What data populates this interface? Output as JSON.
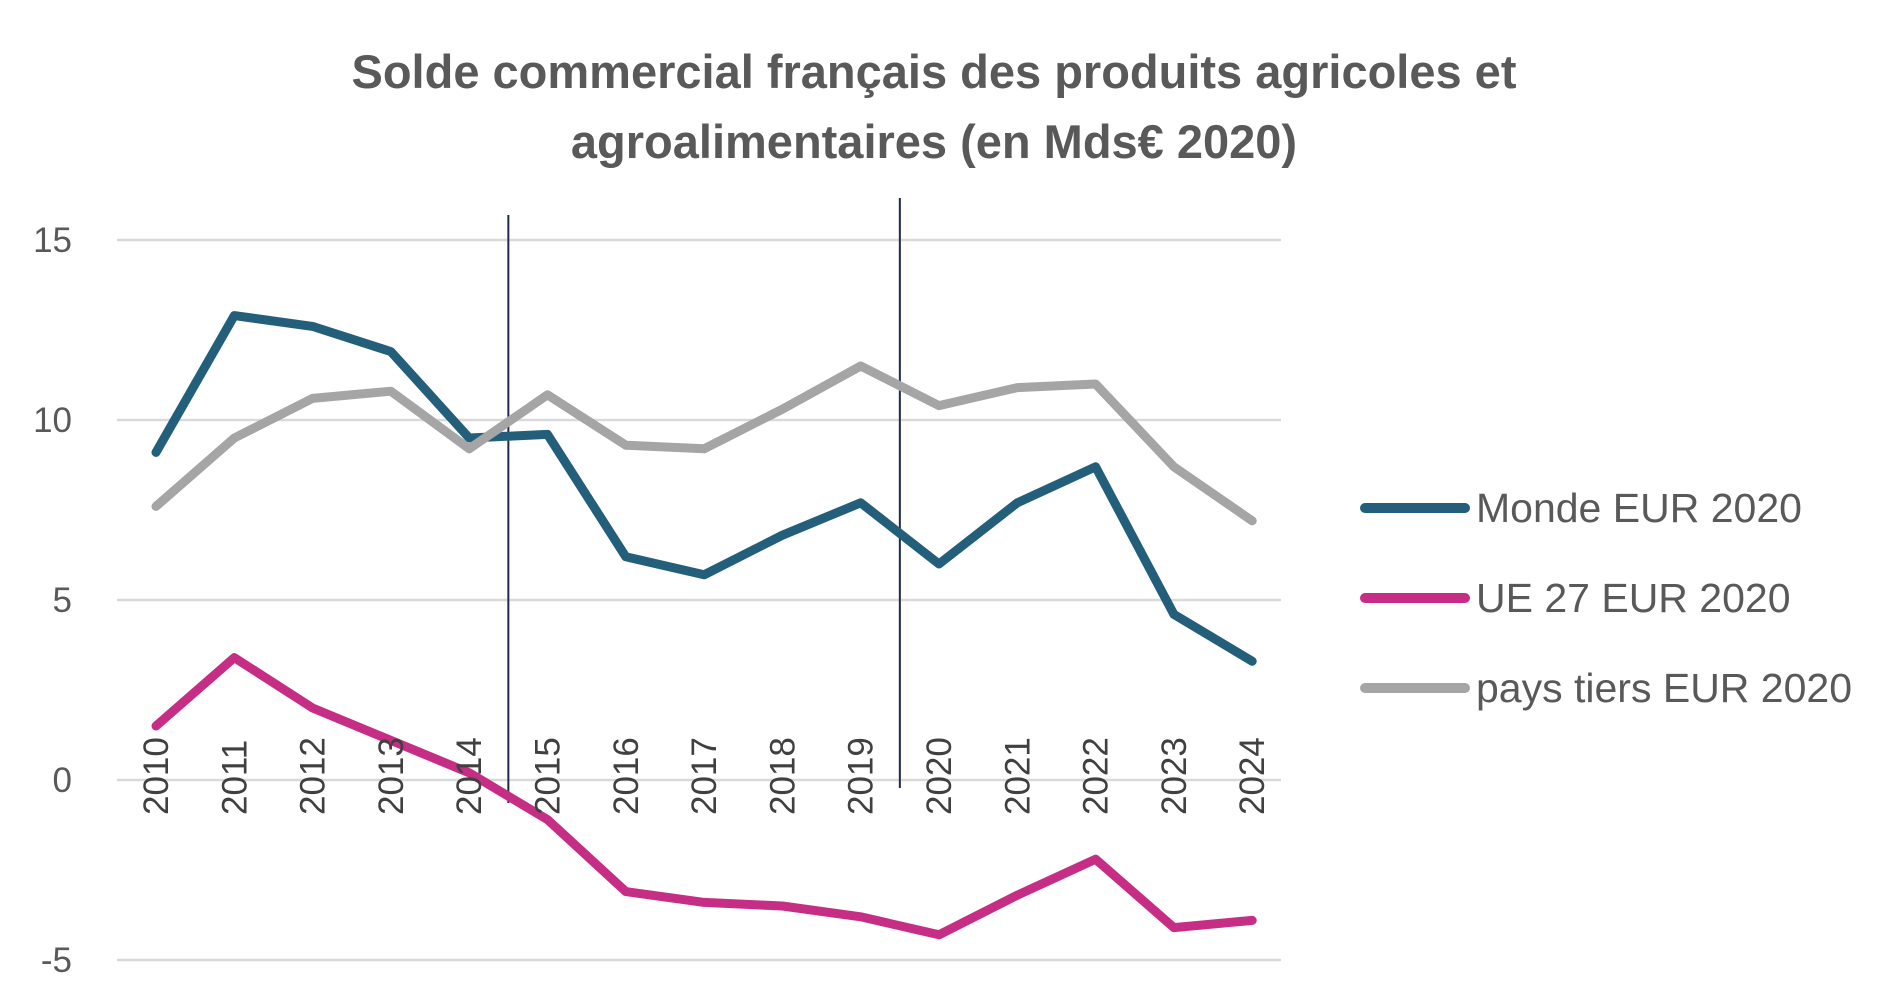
{
  "chart_data": {
    "type": "line",
    "title_lines": [
      "Solde commercial français des produits agricoles et",
      "agroalimentaires (en Mds€ 2020)"
    ],
    "categories": [
      "2010",
      "2011",
      "2012",
      "2013",
      "2014",
      "2015",
      "2016",
      "2017",
      "2018",
      "2019",
      "2020",
      "2021",
      "2022",
      "2023",
      "2024"
    ],
    "y_ticks": [
      "-5",
      "0",
      "5",
      "10",
      "15"
    ],
    "ylim": [
      -5,
      15
    ],
    "grid": "horizontal",
    "legend_position": "right",
    "vertical_markers_between": [
      [
        "2014",
        "2015"
      ],
      [
        "2019",
        "2020"
      ]
    ],
    "series": [
      {
        "name": "Monde EUR 2020",
        "color": "#235f7a",
        "values": [
          9.1,
          12.9,
          12.6,
          11.9,
          9.5,
          9.6,
          6.2,
          5.7,
          6.8,
          7.7,
          6.0,
          7.7,
          8.7,
          4.6,
          3.3
        ]
      },
      {
        "name": "UE 27 EUR 2020",
        "color": "#c62e86",
        "values": [
          1.5,
          3.4,
          2.0,
          1.1,
          0.2,
          -1.1,
          -3.1,
          -3.4,
          -3.5,
          -3.8,
          -4.3,
          -3.2,
          -2.2,
          -4.1,
          -3.9
        ]
      },
      {
        "name": "pays tiers EUR 2020",
        "color": "#a5a5a5",
        "values": [
          7.6,
          9.5,
          10.6,
          10.8,
          9.2,
          10.7,
          9.3,
          9.2,
          10.3,
          11.5,
          10.4,
          10.9,
          11.0,
          8.7,
          7.2
        ]
      }
    ]
  }
}
